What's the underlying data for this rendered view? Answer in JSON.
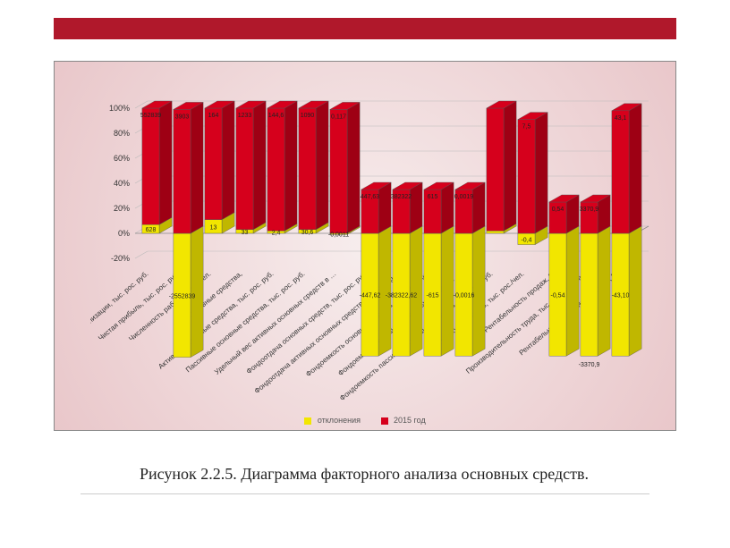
{
  "slide": {
    "banner_color": "#b0182b",
    "caption": "Рисунок 2.2.5. Диаграмма факторного анализа основных средств."
  },
  "chart": {
    "type": "stacked-3d-bar-100pct",
    "background_gradient_center": "#f7eded",
    "background_gradient_edge": "#e9c7ca",
    "y_axis": {
      "min": -20,
      "max": 100,
      "tick_step": 20,
      "ticks": [
        "-20%",
        "0%",
        "20%",
        "40%",
        "60%",
        "80%",
        "100%"
      ],
      "label_fontsize": 9,
      "grid_color": "#bbbbbb"
    },
    "series": [
      {
        "name": "отклонения",
        "color": "#f2e600",
        "side_color": "#c0b700"
      },
      {
        "name": "2015 год",
        "color": "#d6001c",
        "side_color": "#9e0014"
      }
    ],
    "legend_fontsize": 9,
    "category_label_fontsize": 8,
    "value_label_fontsize": 7,
    "bar_width_ratio": 0.55,
    "categories": [
      "Выручка от реализации, тыс. рос. руб.",
      "Чистая прибыль, тыс. рос. руб.",
      "Численность работающих, чел.",
      "Основные средства,",
      "Активные основные средства, тыс. рос. руб.",
      "Пассивные основные средства, тыс. рос. руб.",
      "Удельный вес активных основных средств в …",
      "Фондоотдача основных средств, тыс. рос. руб.",
      "Фондоотдача активных основных средств, тыс. рос. р…",
      "Фондоемкость основных средств, тыс. рос. руб.",
      "Фондоемкость активных основных средств в …",
      "Фондоемкость пассивных основных средств, тыс. рос. руб.",
      "Фондовооруженность, тыс. рос./чел.",
      "Рентабельность продаж, %",
      "Производительность труда, тыс. рос. руб./чел.",
      "Рентабельность основных средств, %"
    ],
    "labels_dev": [
      "628",
      "-2552839",
      "13",
      "33",
      "2,4",
      "30,6",
      "-0,0011",
      "-447,62",
      "-382322,62",
      "-615",
      "-0,0016",
      "",
      "-0,4",
      "-0,54",
      "",
      "-43,10"
    ],
    "labels_2015": [
      "552839",
      "3903",
      "164",
      "1233",
      "144,6",
      "1090",
      "0,117",
      "447,63",
      "382322",
      "615",
      "0,0019",
      "",
      "7,5",
      "0,54",
      "3370,9",
      "43,1"
    ],
    "labels_dev2": [
      "",
      "",
      "",
      "",
      "",
      "",
      "",
      "",
      "",
      "",
      "",
      "",
      "",
      "",
      "-3370,9",
      ""
    ],
    "bar_pct_yellow": [
      0.07,
      -0.99,
      0.11,
      0.03,
      0.02,
      0.03,
      -0.01,
      -0.98,
      -0.98,
      -0.98,
      -0.98,
      0.02,
      -0.09,
      -0.98,
      -0.98,
      -0.98
    ],
    "bar_pct_red": [
      0.93,
      0.99,
      0.89,
      0.97,
      0.98,
      0.97,
      0.99,
      0.35,
      0.35,
      0.35,
      0.35,
      0.98,
      0.91,
      0.25,
      0.25,
      0.98
    ]
  }
}
